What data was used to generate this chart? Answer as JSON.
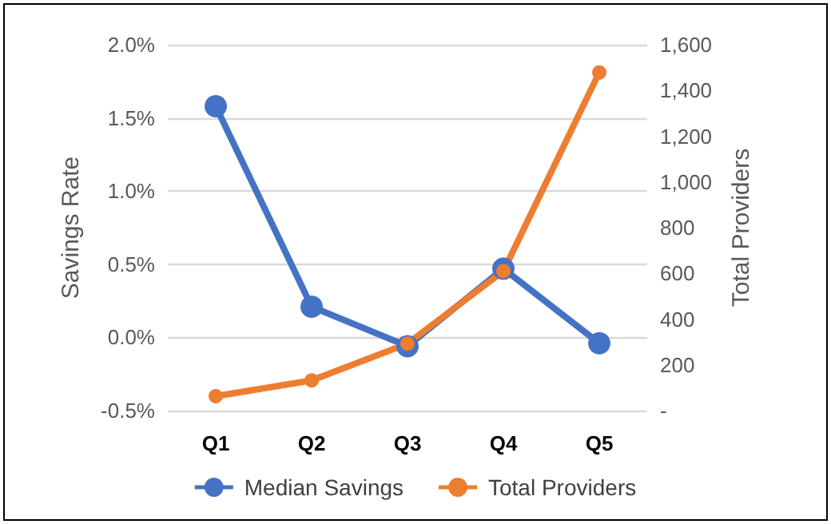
{
  "chart_data": {
    "type": "line",
    "categories": [
      "Q1",
      "Q2",
      "Q3",
      "Q4",
      "Q5"
    ],
    "ylabel": "Savings Rate",
    "y2label": "Total Providers",
    "series": [
      {
        "name": "Median Savings",
        "color": "#4472c4",
        "values": [
          1.58,
          0.21,
          -0.06,
          0.47,
          -0.04
        ]
      },
      {
        "name": "Total Providers",
        "color": "#ed7d31",
        "axis": "y2",
        "values": [
          63,
          132,
          293,
          610,
          1479
        ]
      }
    ],
    "ylim": [
      -0.5,
      2.0
    ],
    "yticks": [
      {
        "value": -0.5,
        "label": "-0.5%"
      },
      {
        "value": 0,
        "label": "0.0%"
      },
      {
        "value": 0.5,
        "label": "0.5%"
      },
      {
        "value": 1.0,
        "label": "1.0%"
      },
      {
        "value": 1.5,
        "label": "1.5%"
      },
      {
        "value": 2.0,
        "label": "2.0%"
      }
    ],
    "y2lim": [
      0,
      1600
    ],
    "y2ticks": [
      {
        "value": 0,
        "label": "-"
      },
      {
        "value": 200,
        "label": "200"
      },
      {
        "value": 400,
        "label": "400"
      },
      {
        "value": 600,
        "label": "600"
      },
      {
        "value": 800,
        "label": "800"
      },
      {
        "value": 1000,
        "label": "1,000"
      },
      {
        "value": 1200,
        "label": "1,200"
      },
      {
        "value": 1400,
        "label": "1,400"
      },
      {
        "value": 1600,
        "label": "1,600"
      }
    ],
    "grid": "y",
    "legend": "bottom",
    "marker": "circle",
    "line_style": "solid"
  }
}
